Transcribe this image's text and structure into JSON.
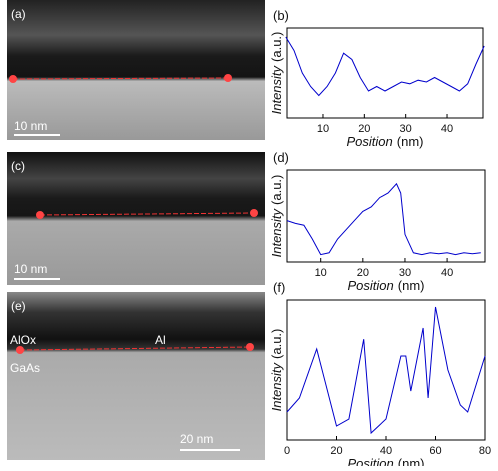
{
  "images": [
    {
      "label": "(a)",
      "scale_bar": "10 nm"
    },
    {
      "label": "(c)",
      "scale_bar": "10 nm"
    },
    {
      "label": "(e)",
      "scale_bar": "20 nm",
      "annotations": [
        "AlOx",
        "Al",
        "GaAs"
      ]
    }
  ],
  "chart_data": [
    {
      "type": "line",
      "label": "(b)",
      "ylabel": "Intensity",
      "ylabel_unit": "(a.u.)",
      "xlabel": "Position",
      "xlabel_unit": "(nm)",
      "color": "#0000cc",
      "x": [
        1,
        3,
        5,
        7,
        9,
        11,
        13,
        15,
        17,
        19,
        21,
        23,
        25,
        27,
        29,
        31,
        33,
        35,
        37,
        39,
        41,
        43,
        45,
        47,
        49
      ],
      "values": [
        0.9,
        0.75,
        0.5,
        0.35,
        0.25,
        0.35,
        0.5,
        0.72,
        0.65,
        0.45,
        0.3,
        0.35,
        0.3,
        0.35,
        0.4,
        0.38,
        0.42,
        0.4,
        0.45,
        0.4,
        0.35,
        0.3,
        0.38,
        0.6,
        0.8
      ],
      "xlim": [
        1.3,
        48.7
      ],
      "ylim": [
        0,
        1
      ],
      "xticks": [
        10,
        20,
        30,
        40
      ]
    },
    {
      "type": "line",
      "label": "(d)",
      "ylabel": "Intensity",
      "ylabel_unit": "(a.u.)",
      "xlabel": "Position",
      "xlabel_unit": "(nm)",
      "color": "#0000cc",
      "x": [
        2,
        4,
        6,
        8,
        10,
        12,
        14,
        16,
        18,
        20,
        22,
        24,
        26,
        28,
        29,
        30,
        32,
        34,
        36,
        38,
        40,
        42,
        44,
        46,
        48
      ],
      "values": [
        0.45,
        0.42,
        0.4,
        0.25,
        0.08,
        0.1,
        0.25,
        0.35,
        0.45,
        0.55,
        0.6,
        0.7,
        0.75,
        0.85,
        0.75,
        0.3,
        0.1,
        0.08,
        0.1,
        0.09,
        0.1,
        0.08,
        0.1,
        0.09,
        0.1
      ],
      "xlim": [
        2,
        49
      ],
      "ylim": [
        0,
        1
      ],
      "xticks": [
        10,
        20,
        30,
        40
      ]
    },
    {
      "type": "line",
      "label": "(f)",
      "ylabel": "Intensity",
      "ylabel_unit": "(a.u.)",
      "xlabel": "Position",
      "xlabel_unit": "(nm)",
      "color": "#0000cc",
      "x": [
        0,
        5,
        12,
        20,
        25,
        31,
        34,
        40,
        46,
        48,
        50,
        55,
        57,
        60,
        65,
        70,
        73,
        80
      ],
      "values": [
        0.2,
        0.3,
        0.65,
        0.1,
        0.15,
        0.72,
        0.05,
        0.15,
        0.6,
        0.6,
        0.35,
        0.8,
        0.3,
        0.95,
        0.5,
        0.25,
        0.2,
        0.6
      ],
      "xlim": [
        0,
        80
      ],
      "ylim": [
        0,
        1
      ],
      "xticks": [
        0,
        20,
        40,
        60,
        80
      ]
    }
  ]
}
